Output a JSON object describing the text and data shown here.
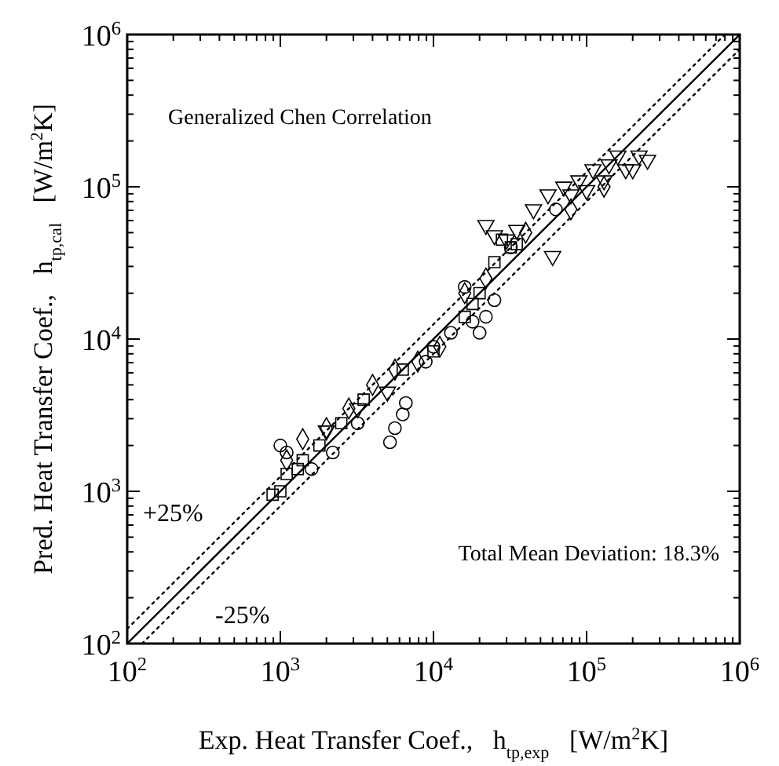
{
  "chart_data": {
    "type": "scatter",
    "log": "xy",
    "xlabel": "Exp. Heat Transfer Coef.,   h$_{tp,exp}$   [W/m$^{2}$K]",
    "ylabel": "Pred. Heat Transfer Coef.,   h$_{tp,cal}$   [W/m$^{2}$K]",
    "xlim": [
      100,
      1000000
    ],
    "ylim": [
      100,
      1000000
    ],
    "xticks": [
      {
        "value": 100,
        "label": "10$^{2}$"
      },
      {
        "value": 200,
        "label": null
      },
      {
        "value": 300,
        "label": null
      },
      {
        "value": 400,
        "label": null
      },
      {
        "value": 500,
        "label": null
      },
      {
        "value": 600,
        "label": null
      },
      {
        "value": 700,
        "label": null
      },
      {
        "value": 800,
        "label": null
      },
      {
        "value": 900,
        "label": null
      },
      {
        "value": 1000,
        "label": "10$^{3}$"
      },
      {
        "value": 2000,
        "label": null
      },
      {
        "value": 3000,
        "label": null
      },
      {
        "value": 4000,
        "label": null
      },
      {
        "value": 5000,
        "label": null
      },
      {
        "value": 6000,
        "label": null
      },
      {
        "value": 7000,
        "label": null
      },
      {
        "value": 8000,
        "label": null
      },
      {
        "value": 9000,
        "label": null
      },
      {
        "value": 10000,
        "label": "10$^{4}$"
      },
      {
        "value": 20000,
        "label": null
      },
      {
        "value": 30000,
        "label": null
      },
      {
        "value": 40000,
        "label": null
      },
      {
        "value": 50000,
        "label": null
      },
      {
        "value": 60000,
        "label": null
      },
      {
        "value": 70000,
        "label": null
      },
      {
        "value": 80000,
        "label": null
      },
      {
        "value": 90000,
        "label": null
      },
      {
        "value": 100000,
        "label": "10$^{5}$"
      },
      {
        "value": 200000,
        "label": null
      },
      {
        "value": 300000,
        "label": null
      },
      {
        "value": 400000,
        "label": null
      },
      {
        "value": 500000,
        "label": null
      },
      {
        "value": 600000,
        "label": null
      },
      {
        "value": 700000,
        "label": null
      },
      {
        "value": 800000,
        "label": null
      },
      {
        "value": 900000,
        "label": null
      },
      {
        "value": 1000000,
        "label": "10$^{6}$"
      }
    ],
    "yticks": [
      {
        "value": 100,
        "label": "10$^{2}$"
      },
      {
        "value": 200,
        "label": null
      },
      {
        "value": 300,
        "label": null
      },
      {
        "value": 400,
        "label": null
      },
      {
        "value": 500,
        "label": null
      },
      {
        "value": 600,
        "label": null
      },
      {
        "value": 700,
        "label": null
      },
      {
        "value": 800,
        "label": null
      },
      {
        "value": 900,
        "label": null
      },
      {
        "value": 1000,
        "label": "10$^{3}$"
      },
      {
        "value": 2000,
        "label": null
      },
      {
        "value": 3000,
        "label": null
      },
      {
        "value": 4000,
        "label": null
      },
      {
        "value": 5000,
        "label": null
      },
      {
        "value": 6000,
        "label": null
      },
      {
        "value": 7000,
        "label": null
      },
      {
        "value": 8000,
        "label": null
      },
      {
        "value": 9000,
        "label": null
      },
      {
        "value": 10000,
        "label": "10$^{4}$"
      },
      {
        "value": 20000,
        "label": null
      },
      {
        "value": 30000,
        "label": null
      },
      {
        "value": 40000,
        "label": null
      },
      {
        "value": 50000,
        "label": null
      },
      {
        "value": 60000,
        "label": null
      },
      {
        "value": 70000,
        "label": null
      },
      {
        "value": 80000,
        "label": null
      },
      {
        "value": 90000,
        "label": null
      },
      {
        "value": 100000,
        "label": "10$^{5}$"
      },
      {
        "value": 200000,
        "label": null
      },
      {
        "value": 300000,
        "label": null
      },
      {
        "value": 400000,
        "label": null
      },
      {
        "value": 500000,
        "label": null
      },
      {
        "value": 600000,
        "label": null
      },
      {
        "value": 700000,
        "label": null
      },
      {
        "value": 800000,
        "label": null
      },
      {
        "value": 900000,
        "label": null
      },
      {
        "value": 1000000,
        "label": "10$^{6}$"
      }
    ],
    "annotations": [
      "Generalized Chen Correlation",
      "Total Mean Deviation: 18.3%",
      "+25%",
      "-25%"
    ],
    "series": [
      {
        "type": "line",
        "color": "#000000",
        "line_style": "solid",
        "x": [
          100,
          1000000
        ],
        "values": [
          100,
          1000000
        ]
      },
      {
        "type": "line",
        "color": "#000000",
        "line_style": "dotted",
        "x": [
          100,
          800000
        ],
        "values": [
          125,
          1000000
        ]
      },
      {
        "type": "line",
        "color": "#000000",
        "line_style": "dotted",
        "x": [
          125,
          1000000
        ],
        "values": [
          100,
          800000
        ]
      },
      {
        "color": "#000000",
        "marker": "triangle",
        "x": [
          22000,
          25000,
          35000,
          45000,
          56000,
          71000,
          89000,
          110000,
          130000,
          140000,
          160000,
          180000,
          200000,
          220000,
          250000,
          60000,
          79000,
          100000,
          3200,
          5000,
          2000,
          30000
        ],
        "values": [
          56000,
          48000,
          52000,
          71000,
          89000,
          100000,
          110000,
          130000,
          110000,
          140000,
          160000,
          130000,
          130000,
          160000,
          150000,
          35000,
          89000,
          95000,
          3500,
          4500,
          2500,
          45000
        ]
      },
      {
        "color": "#000000",
        "marker": "circle",
        "x": [
          5600,
          5200,
          6300,
          6600,
          20000,
          22000,
          25000,
          18000,
          1000,
          1100,
          3200,
          10000,
          13000,
          8900,
          32000,
          16000,
          2200,
          1600,
          63000
        ],
        "values": [
          2600,
          2100,
          3200,
          3800,
          11000,
          14000,
          18000,
          13000,
          2000,
          1800,
          2800,
          8900,
          11000,
          7100,
          40000,
          22000,
          1800,
          1400,
          71000
        ]
      },
      {
        "color": "#000000",
        "marker": "square",
        "x": [
          890,
          1000,
          1100,
          1300,
          1400,
          1800,
          2500,
          3500,
          6300,
          10000,
          16000,
          20000,
          25000,
          28000,
          32000,
          35000,
          18000
        ],
        "values": [
          950,
          1000,
          1300,
          1400,
          1600,
          2000,
          2800,
          4000,
          6300,
          8300,
          14000,
          20000,
          32000,
          45000,
          40000,
          42000,
          17000
        ]
      },
      {
        "color": "#000000",
        "marker": "diamond",
        "x": [
          1100,
          1400,
          2000,
          2800,
          4000,
          5600,
          7900,
          16000,
          22000,
          40000,
          79000,
          130000,
          11000
        ],
        "values": [
          1600,
          2200,
          2600,
          3500,
          5000,
          6300,
          7100,
          20000,
          25000,
          50000,
          71000,
          100000,
          8900
        ]
      }
    ]
  }
}
